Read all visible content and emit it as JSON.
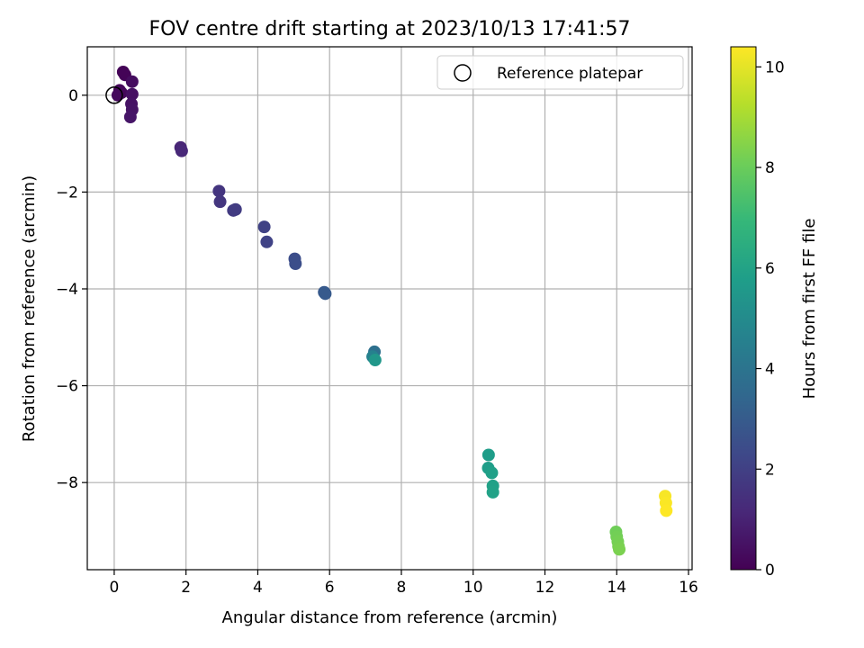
{
  "chart_data": {
    "type": "scatter",
    "title": "FOV centre drift starting at 2023/10/13 17:41:57",
    "xlabel": "Angular distance from reference (arcmin)",
    "ylabel": "Rotation from reference (arcmin)",
    "xlim": [
      -0.75,
      16.1
    ],
    "ylim": [
      -9.8,
      1.0
    ],
    "xticks": [
      "0",
      "2",
      "4",
      "6",
      "8",
      "10",
      "12",
      "14",
      "16"
    ],
    "yticks": [
      "0",
      "−2",
      "−4",
      "−6",
      "−8"
    ],
    "xtick_values": [
      0,
      2,
      4,
      6,
      8,
      10,
      12,
      14,
      16
    ],
    "ytick_values": [
      0,
      -2,
      -4,
      -6,
      -8
    ],
    "grid": true,
    "legend": {
      "position": "top-right",
      "entries": [
        {
          "label": "Reference platepar",
          "marker": "open-circle",
          "color": "#000000"
        }
      ]
    },
    "reference_point": {
      "x": 0,
      "y": 0
    },
    "colorbar": {
      "label": "Hours from first FF file",
      "range": [
        0,
        10.4
      ],
      "ticks": [
        "0",
        "2",
        "4",
        "6",
        "8",
        "10"
      ],
      "tick_values": [
        0,
        2,
        4,
        6,
        8,
        10
      ],
      "colormap": "viridis",
      "colors": [
        "#440154",
        "#482878",
        "#3e4989",
        "#31688e",
        "#26828e",
        "#1f9e89",
        "#35b779",
        "#6ece58",
        "#b5de2b",
        "#fde725"
      ]
    },
    "points": [
      {
        "x": 0.25,
        "y": 0.48,
        "h": 0.05
      },
      {
        "x": 0.3,
        "y": 0.42,
        "h": 0.1
      },
      {
        "x": 0.15,
        "y": 0.1,
        "h": 0.15
      },
      {
        "x": 0.2,
        "y": 0.05,
        "h": 0.2
      },
      {
        "x": 0.1,
        "y": 0.0,
        "h": 0.25
      },
      {
        "x": 0.5,
        "y": 0.28,
        "h": 0.35
      },
      {
        "x": 0.5,
        "y": 0.02,
        "h": 0.45
      },
      {
        "x": 0.48,
        "y": -0.18,
        "h": 0.5
      },
      {
        "x": 0.5,
        "y": -0.3,
        "h": 0.55
      },
      {
        "x": 0.45,
        "y": -0.45,
        "h": 0.6
      },
      {
        "x": 1.85,
        "y": -1.08,
        "h": 1.1
      },
      {
        "x": 1.88,
        "y": -1.15,
        "h": 1.15
      },
      {
        "x": 2.92,
        "y": -1.98,
        "h": 1.6
      },
      {
        "x": 2.95,
        "y": -2.2,
        "h": 1.65
      },
      {
        "x": 3.32,
        "y": -2.38,
        "h": 1.8
      },
      {
        "x": 3.38,
        "y": -2.36,
        "h": 1.85
      },
      {
        "x": 4.18,
        "y": -2.72,
        "h": 2.05
      },
      {
        "x": 4.25,
        "y": -3.03,
        "h": 2.1
      },
      {
        "x": 5.03,
        "y": -3.38,
        "h": 2.45
      },
      {
        "x": 5.05,
        "y": -3.48,
        "h": 2.5
      },
      {
        "x": 5.85,
        "y": -4.07,
        "h": 2.9
      },
      {
        "x": 5.88,
        "y": -4.1,
        "h": 2.95
      },
      {
        "x": 7.25,
        "y": -5.3,
        "h": 3.8
      },
      {
        "x": 7.2,
        "y": -5.4,
        "h": 4.6
      },
      {
        "x": 7.27,
        "y": -5.47,
        "h": 5.5
      },
      {
        "x": 10.43,
        "y": -7.43,
        "h": 5.75
      },
      {
        "x": 10.42,
        "y": -7.7,
        "h": 5.8
      },
      {
        "x": 10.52,
        "y": -7.8,
        "h": 5.85
      },
      {
        "x": 10.55,
        "y": -8.07,
        "h": 5.9
      },
      {
        "x": 10.55,
        "y": -8.2,
        "h": 5.95
      },
      {
        "x": 13.98,
        "y": -9.02,
        "h": 8.1
      },
      {
        "x": 14.0,
        "y": -9.12,
        "h": 8.15
      },
      {
        "x": 14.03,
        "y": -9.22,
        "h": 8.2
      },
      {
        "x": 14.05,
        "y": -9.32,
        "h": 8.25
      },
      {
        "x": 14.07,
        "y": -9.38,
        "h": 8.3
      },
      {
        "x": 15.35,
        "y": -8.28,
        "h": 10.3
      },
      {
        "x": 15.37,
        "y": -8.42,
        "h": 10.35
      },
      {
        "x": 15.38,
        "y": -8.58,
        "h": 10.4
      }
    ]
  }
}
